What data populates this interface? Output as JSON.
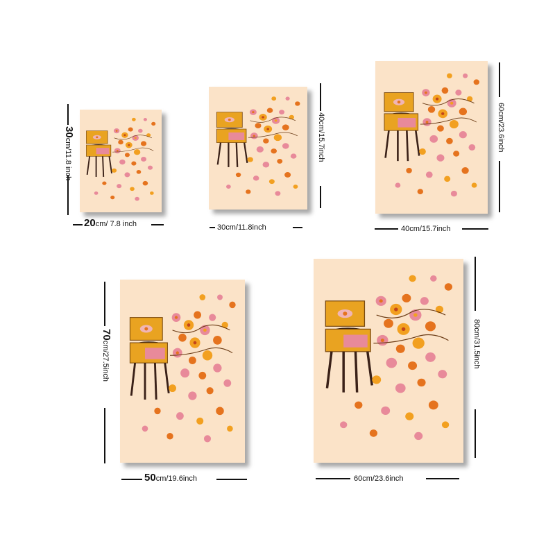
{
  "sizes": [
    {
      "id": "s1",
      "width_label": "20cm/ 7.8 inch",
      "width_big": "20",
      "width_rest": "cm/ 7.8 inch",
      "height_big": "30",
      "height_rest": "cm/11.8 inch"
    },
    {
      "id": "s2",
      "width_label": "30cm/11.8inch",
      "height_label": "40cm/15.7inch"
    },
    {
      "id": "s3",
      "width_label": "40cm/15.7inch",
      "height_label": "60cm/23.6inch"
    },
    {
      "id": "s4",
      "width_big": "50",
      "width_rest": "cm/19.6inch",
      "height_big": "70",
      "height_rest": "cm/27.5inch"
    },
    {
      "id": "s5",
      "width_label": "60cm/23.6inch",
      "height_label": "80cm/31.5inch"
    }
  ],
  "colors": {
    "poster_bg": "#fbe3c8",
    "cabinet": "#e9a321",
    "cabinet_dark": "#c98514",
    "pink": "#e88a9a",
    "orange": "#e5731e",
    "leg": "#3a2118"
  }
}
